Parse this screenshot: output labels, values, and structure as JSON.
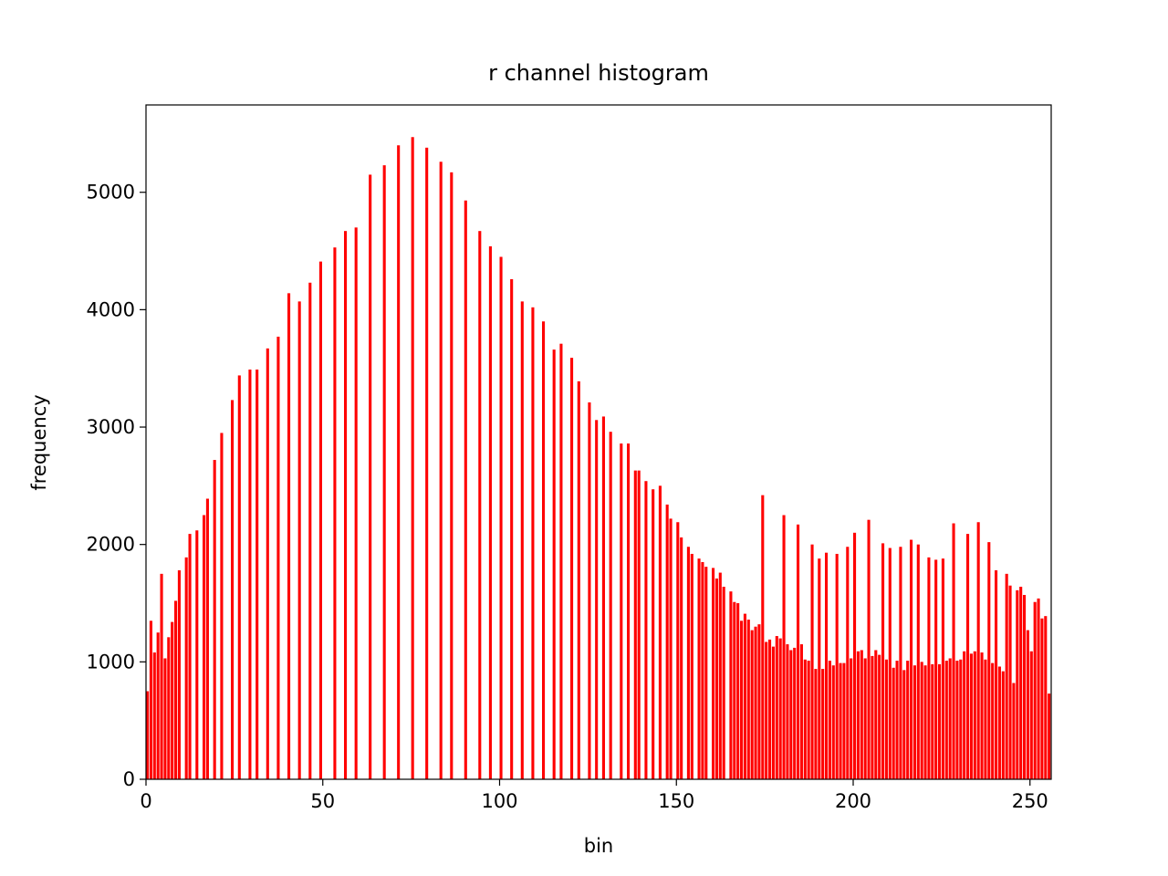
{
  "chart_data": {
    "type": "histogram",
    "title": "r channel histogram",
    "x_label": "bin",
    "y_label": "frequency",
    "color": "#ff0000",
    "bins": [
      0,
      1,
      2,
      3,
      4,
      5,
      6,
      7,
      8,
      9,
      10,
      11,
      12,
      13,
      14,
      15,
      16,
      17,
      18,
      19,
      20,
      21,
      22,
      23,
      24,
      25,
      26,
      27,
      28,
      29,
      30,
      31,
      32,
      33,
      34,
      35,
      36,
      37,
      38,
      39,
      40,
      41,
      42,
      43,
      44,
      45,
      46,
      47,
      48,
      49,
      50,
      51,
      52,
      53,
      54,
      55,
      56,
      57,
      58,
      59,
      60,
      61,
      62,
      63,
      64,
      65,
      66,
      67,
      68,
      69,
      70,
      71,
      72,
      73,
      74,
      75,
      76,
      77,
      78,
      79,
      80,
      81,
      82,
      83,
      84,
      85,
      86,
      87,
      88,
      89,
      90,
      91,
      92,
      93,
      94,
      95,
      96,
      97,
      98,
      99,
      100,
      101,
      102,
      103,
      104,
      105,
      106,
      107,
      108,
      109,
      110,
      111,
      112,
      113,
      114,
      115,
      116,
      117,
      118,
      119,
      120,
      121,
      122,
      123,
      124,
      125,
      126,
      127,
      128,
      129,
      130,
      131,
      132,
      133,
      134,
      135,
      136,
      137,
      138,
      139,
      140,
      141,
      142,
      143,
      144,
      145,
      146,
      147,
      148,
      149,
      150,
      151,
      152,
      153,
      154,
      155,
      156,
      157,
      158,
      159,
      160,
      161,
      162,
      163,
      164,
      165,
      166,
      167,
      168,
      169,
      170,
      171,
      172,
      173,
      174,
      175,
      176,
      177,
      178,
      179,
      180,
      181,
      182,
      183,
      184,
      185,
      186,
      187,
      188,
      189,
      190,
      191,
      192,
      193,
      194,
      195,
      196,
      197,
      198,
      199,
      200,
      201,
      202,
      203,
      204,
      205,
      206,
      207,
      208,
      209,
      210,
      211,
      212,
      213,
      214,
      215,
      216,
      217,
      218,
      219,
      220,
      221,
      222,
      223,
      224,
      225,
      226,
      227,
      228,
      229,
      230,
      231,
      232,
      233,
      234,
      235,
      236,
      237,
      238,
      239,
      240,
      241,
      242,
      243,
      244,
      245,
      246,
      247,
      248,
      249,
      250,
      251,
      252,
      253,
      254,
      255,
      256
    ],
    "values": [
      750,
      1350,
      1080,
      1250,
      1750,
      1030,
      1210,
      1340,
      1520,
      1780,
      0,
      1890,
      2090,
      0,
      2120,
      0,
      2250,
      2390,
      0,
      2720,
      0,
      2950,
      0,
      0,
      3230,
      0,
      3440,
      0,
      0,
      3490,
      0,
      3490,
      0,
      0,
      3670,
      0,
      0,
      3770,
      0,
      0,
      4140,
      0,
      0,
      4070,
      0,
      0,
      4230,
      0,
      0,
      4410,
      0,
      0,
      0,
      4530,
      0,
      0,
      4670,
      0,
      0,
      4700,
      0,
      0,
      0,
      5150,
      0,
      0,
      0,
      5230,
      0,
      0,
      0,
      5400,
      0,
      0,
      0,
      5470,
      0,
      0,
      0,
      5380,
      0,
      0,
      0,
      5260,
      0,
      0,
      5170,
      0,
      0,
      0,
      4930,
      0,
      0,
      0,
      4670,
      0,
      0,
      4540,
      0,
      0,
      4450,
      0,
      0,
      4260,
      0,
      0,
      4070,
      0,
      0,
      4020,
      0,
      0,
      3900,
      0,
      0,
      3660,
      0,
      3710,
      0,
      0,
      3590,
      0,
      3390,
      0,
      0,
      3210,
      0,
      3060,
      0,
      3090,
      0,
      2960,
      0,
      0,
      2860,
      0,
      2860,
      0,
      2630,
      2630,
      0,
      2540,
      0,
      2470,
      0,
      2500,
      0,
      2340,
      2220,
      0,
      2190,
      2060,
      0,
      1980,
      1920,
      0,
      1880,
      1850,
      1810,
      0,
      1800,
      1710,
      1760,
      1640,
      0,
      1600,
      1510,
      1500,
      1350,
      1410,
      1360,
      1270,
      1300,
      1320,
      2420,
      1170,
      1190,
      1130,
      1220,
      1200,
      2250,
      1150,
      1100,
      1120,
      2170,
      1150,
      1020,
      1010,
      2000,
      940,
      1880,
      940,
      1930,
      1010,
      970,
      1920,
      990,
      990,
      1980,
      1030,
      2100,
      1090,
      1100,
      1030,
      2210,
      1050,
      1100,
      1060,
      2010,
      1020,
      1970,
      950,
      1010,
      1980,
      930,
      1010,
      2040,
      970,
      2000,
      1000,
      970,
      1890,
      980,
      1870,
      980,
      1880,
      1010,
      1030,
      2180,
      1010,
      1020,
      1090,
      2090,
      1070,
      1090,
      2190,
      1080,
      1020,
      2020,
      990,
      1780,
      960,
      920,
      1750,
      1650,
      820,
      1610,
      1640,
      1570,
      1270,
      1090,
      1510,
      1540,
      1370,
      1390,
      730
    ],
    "xlim": [
      0,
      256
    ],
    "xticks": [
      0,
      50,
      100,
      150,
      200,
      250
    ],
    "ylim": [
      0,
      5744
    ],
    "yticks": [
      0,
      1000,
      2000,
      3000,
      4000,
      5000
    ],
    "grid": false
  }
}
